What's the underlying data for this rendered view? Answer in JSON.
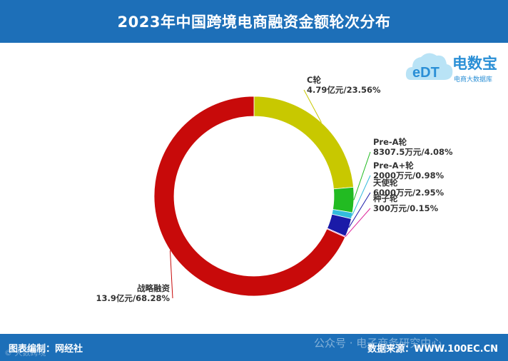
{
  "header": {
    "title": "2023年中国跨境电商融资金额轮次分布"
  },
  "logo": {
    "mark": "eDT",
    "name": "电数宝",
    "tagline": "电商大数据库"
  },
  "footer": {
    "left": "图表编制：网经社",
    "right": "数据来源：WWW.100EC.CN",
    "watermark": "公众号 · 电子商务研究中心",
    "watermark2": "© 大数跨境"
  },
  "chart_data": {
    "type": "pie",
    "donut": true,
    "slices": [
      {
        "name": "C轮",
        "value_text": "4.79亿元",
        "percent": 23.56,
        "percent_text": "23.56%",
        "color": "#c8c800"
      },
      {
        "name": "Pre-A轮",
        "value_text": "8307.5万元",
        "percent": 4.08,
        "percent_text": "4.08%",
        "color": "#22bb22"
      },
      {
        "name": "Pre-A+轮",
        "value_text": "2000万元",
        "percent": 0.98,
        "percent_text": "0.98%",
        "color": "#33bbdd"
      },
      {
        "name": "天使轮",
        "value_text": "6000万元",
        "percent": 2.95,
        "percent_text": "2.95%",
        "color": "#1a1aa8"
      },
      {
        "name": "种子轮",
        "value_text": "300万元",
        "percent": 0.15,
        "percent_text": "0.15%",
        "color": "#dd2299"
      },
      {
        "name": "战略融资",
        "value_text": "13.9亿元",
        "percent": 68.28,
        "percent_text": "68.28%",
        "color": "#c80a0a"
      }
    ]
  }
}
